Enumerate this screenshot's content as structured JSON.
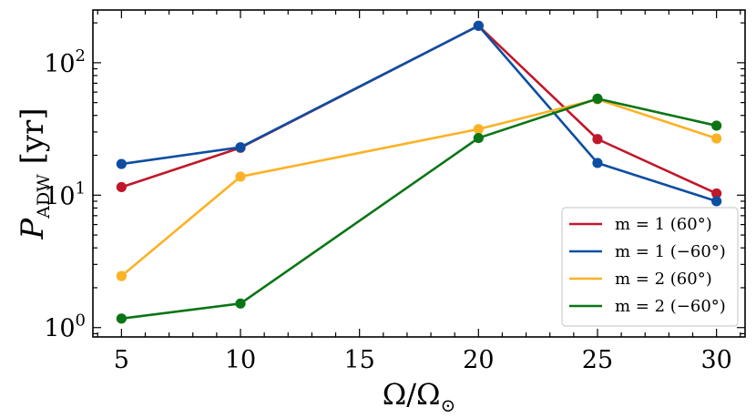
{
  "chart_data": {
    "type": "line",
    "x_scale": "linear",
    "y_scale": "log",
    "xlim": [
      3.8,
      31.2
    ],
    "ylim": [
      0.85,
      250
    ],
    "xticks": [
      5,
      10,
      15,
      20,
      25,
      30
    ],
    "xtick_labels": [
      "5",
      "10",
      "15",
      "20",
      "25",
      "30"
    ],
    "yticks": [
      1,
      10,
      100
    ],
    "ytick_labels": [
      {
        "base": "10",
        "exp": "0"
      },
      {
        "base": "10",
        "exp": "1"
      },
      {
        "base": "10",
        "exp": "2"
      }
    ],
    "xlabel": {
      "main": "Ω/Ω",
      "sub": "⊙"
    },
    "ylabel": {
      "main": "P",
      "sub": "ADW",
      "unit": "[yr]"
    },
    "legend_position": "lower-right",
    "series": [
      {
        "name": "m = 1 (60°)",
        "color": "#c0182a",
        "x": [
          5,
          10,
          20,
          25,
          30
        ],
        "y": [
          11.5,
          22.8,
          190,
          26.5,
          10.3
        ]
      },
      {
        "name": "m = 1 (−60°)",
        "color": "#0b4ea2",
        "x": [
          5,
          10,
          20,
          25,
          30
        ],
        "y": [
          17.2,
          23.0,
          190,
          17.5,
          9.0
        ]
      },
      {
        "name": "m = 2 (60°)",
        "color": "#fbb226",
        "x": [
          5,
          10,
          20,
          25,
          30
        ],
        "y": [
          2.45,
          13.8,
          31.5,
          53.0,
          26.8
        ]
      },
      {
        "name": "m = 2 (−60°)",
        "color": "#0a7515",
        "x": [
          5,
          10,
          20,
          25,
          30
        ],
        "y": [
          1.17,
          1.52,
          27.0,
          53.5,
          33.5
        ]
      }
    ]
  }
}
